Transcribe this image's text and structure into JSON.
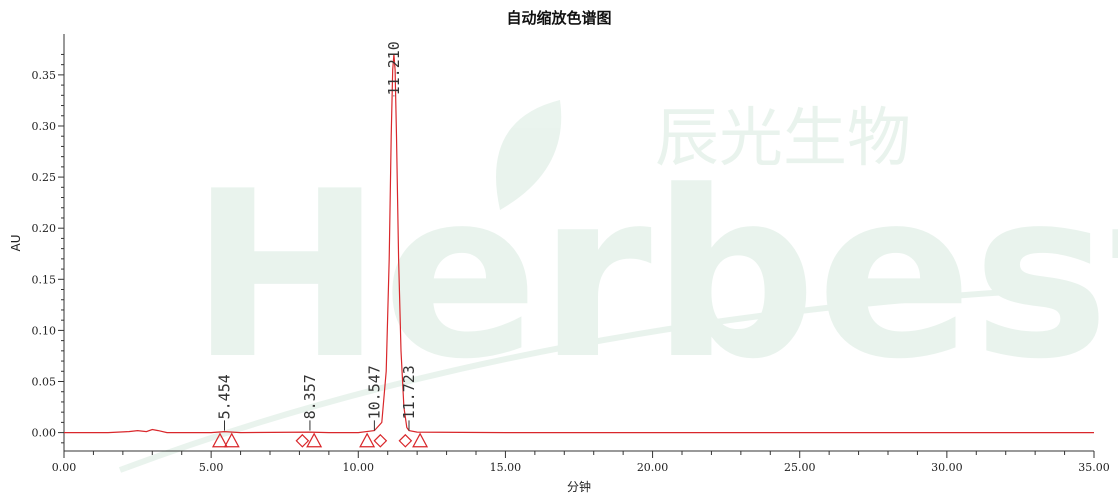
{
  "chart_data": {
    "type": "line",
    "title": "自动缩放色谱图",
    "xlabel": "分钟",
    "ylabel": "AU",
    "xlim": [
      0,
      35
    ],
    "ylim": [
      -0.018,
      0.39
    ],
    "x_ticks": [
      0,
      5,
      10,
      15,
      20,
      25,
      30,
      35
    ],
    "x_tick_labels": [
      "0.00",
      "5.00",
      "10.00",
      "15.00",
      "20.00",
      "25.00",
      "30.00",
      "35.00"
    ],
    "y_ticks": [
      0,
      0.05,
      0.1,
      0.15,
      0.2,
      0.25,
      0.3,
      0.35
    ],
    "y_tick_labels": [
      "0.00",
      "0.05",
      "0.10",
      "0.15",
      "0.20",
      "0.25",
      "0.30",
      "0.35"
    ],
    "line_color": "#d9272b",
    "marker_color": "#d9272b",
    "grid": false,
    "series": [
      {
        "x": [
          0,
          1.5,
          2.2,
          2.5,
          2.8,
          3.0,
          3.2,
          3.5,
          5.0,
          5.454,
          6.0,
          8.357,
          9.0,
          10.0,
          10.547,
          10.8,
          10.95,
          11.05,
          11.12,
          11.17,
          11.21,
          11.25,
          11.3,
          11.37,
          11.45,
          11.55,
          11.65,
          11.723,
          12.0,
          15.0,
          20.0,
          25.0,
          30.0,
          35.0
        ],
        "y": [
          0,
          0,
          0.001,
          0.002,
          0.001,
          0.003,
          0.002,
          0,
          0,
          0.001,
          0,
          0.0005,
          0,
          0,
          0.002,
          0.01,
          0.06,
          0.17,
          0.29,
          0.355,
          0.37,
          0.355,
          0.29,
          0.17,
          0.08,
          0.025,
          0.005,
          0.002,
          0.0005,
          0,
          0,
          0,
          0,
          0
        ]
      }
    ],
    "peaks": [
      {
        "rt": 5.454,
        "label": "5.454"
      },
      {
        "rt": 8.357,
        "label": "8.357"
      },
      {
        "rt": 10.547,
        "label": "10.547"
      },
      {
        "rt": 11.21,
        "label": "11.210"
      },
      {
        "rt": 11.723,
        "label": "11.723"
      }
    ],
    "integration_markers": [
      {
        "shape": "triangle",
        "x": 5.3
      },
      {
        "shape": "triangle",
        "x": 5.7
      },
      {
        "shape": "diamond",
        "x": 8.1
      },
      {
        "shape": "triangle",
        "x": 8.5
      },
      {
        "shape": "triangle",
        "x": 10.3
      },
      {
        "shape": "diamond",
        "x": 10.75
      },
      {
        "shape": "diamond",
        "x": 11.6
      },
      {
        "shape": "triangle",
        "x": 12.1
      }
    ]
  },
  "watermark": {
    "brand": "Herbest",
    "cn_name": "辰光生物",
    "color": "#5aa77a"
  }
}
